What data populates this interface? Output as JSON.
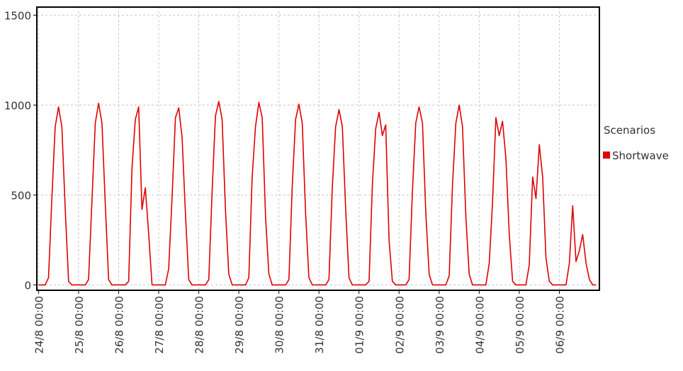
{
  "chart_data": {
    "type": "line",
    "legend_title": "Scenarios",
    "legend": "right",
    "grid": true,
    "x": [
      0,
      2,
      4,
      6,
      8,
      10,
      12,
      14,
      16,
      18,
      20,
      22,
      24,
      26,
      28,
      30,
      32,
      34,
      36,
      38,
      40,
      42,
      44,
      46,
      48,
      50,
      52,
      54,
      56,
      58,
      60,
      62,
      64,
      66,
      68,
      70,
      72,
      74,
      76,
      78,
      80,
      82,
      84,
      86,
      88,
      90,
      92,
      94,
      96,
      98,
      100,
      102,
      104,
      106,
      108,
      110,
      112,
      114,
      116,
      118,
      120,
      122,
      124,
      126,
      128,
      130,
      132,
      134,
      136,
      138,
      140,
      142,
      144,
      146,
      148,
      150,
      152,
      154,
      156,
      158,
      160,
      162,
      164,
      166,
      168,
      170,
      172,
      174,
      176,
      178,
      180,
      182,
      184,
      186,
      188,
      190,
      192,
      194,
      196,
      198,
      200,
      202,
      204,
      206,
      208,
      210,
      212,
      214,
      216,
      218,
      220,
      222,
      224,
      226,
      228,
      230,
      232,
      234,
      236,
      238,
      240,
      242,
      244,
      246,
      248,
      250,
      252,
      254,
      256,
      258,
      260,
      262,
      264,
      266,
      268,
      270,
      272,
      274,
      276,
      278,
      280,
      282,
      284,
      286,
      288,
      290,
      292,
      294,
      296,
      298,
      300,
      302,
      304,
      306,
      308,
      310,
      312,
      314,
      316,
      318,
      320,
      322,
      324,
      326,
      328,
      330,
      332,
      334
    ],
    "series": [
      {
        "name": "Shortwave",
        "color": "#e00000",
        "values": [
          0,
          0,
          0,
          40,
          480,
          880,
          990,
          880,
          420,
          20,
          0,
          0,
          0,
          0,
          0,
          30,
          470,
          900,
          1010,
          900,
          450,
          30,
          0,
          0,
          0,
          0,
          0,
          20,
          650,
          920,
          990,
          420,
          540,
          280,
          0,
          0,
          0,
          0,
          0,
          90,
          480,
          930,
          985,
          820,
          400,
          30,
          0,
          0,
          0,
          0,
          0,
          30,
          520,
          940,
          1020,
          920,
          420,
          60,
          0,
          0,
          0,
          0,
          0,
          40,
          600,
          880,
          1015,
          930,
          380,
          60,
          0,
          0,
          0,
          0,
          0,
          30,
          550,
          920,
          1005,
          900,
          400,
          40,
          0,
          0,
          0,
          0,
          0,
          30,
          540,
          880,
          975,
          880,
          420,
          40,
          0,
          0,
          0,
          0,
          0,
          20,
          560,
          870,
          960,
          830,
          890,
          250,
          20,
          0,
          0,
          0,
          0,
          30,
          520,
          900,
          990,
          900,
          400,
          60,
          0,
          0,
          0,
          0,
          0,
          50,
          560,
          900,
          1000,
          880,
          380,
          60,
          0,
          0,
          0,
          0,
          0,
          120,
          460,
          930,
          830,
          910,
          700,
          280,
          20,
          0,
          0,
          0,
          0,
          110,
          600,
          480,
          780,
          600,
          150,
          20,
          0,
          0,
          0,
          0,
          0,
          120,
          440,
          130,
          190,
          280,
          120,
          30,
          0,
          0
        ]
      }
    ],
    "xlim": [
      -1,
      336
    ],
    "xticks": [
      {
        "value": 0,
        "label": "24/8 00:00"
      },
      {
        "value": 24,
        "label": "25/8 00:00"
      },
      {
        "value": 48,
        "label": "26/8 00:00"
      },
      {
        "value": 72,
        "label": "27/8 00:00"
      },
      {
        "value": 96,
        "label": "28/8 00:00"
      },
      {
        "value": 120,
        "label": "29/8 00:00"
      },
      {
        "value": 144,
        "label": "30/8 00:00"
      },
      {
        "value": 168,
        "label": "31/8 00:00"
      },
      {
        "value": 192,
        "label": "01/9 00:00"
      },
      {
        "value": 216,
        "label": "02/9 00:00"
      },
      {
        "value": 240,
        "label": "03/9 00:00"
      },
      {
        "value": 264,
        "label": "04/9 00:00"
      },
      {
        "value": 288,
        "label": "05/9 00:00"
      },
      {
        "value": 312,
        "label": "06/9 00:00"
      }
    ],
    "ylim": [
      -30,
      1545
    ],
    "yticks": [
      0,
      500,
      1000,
      1500
    ]
  }
}
